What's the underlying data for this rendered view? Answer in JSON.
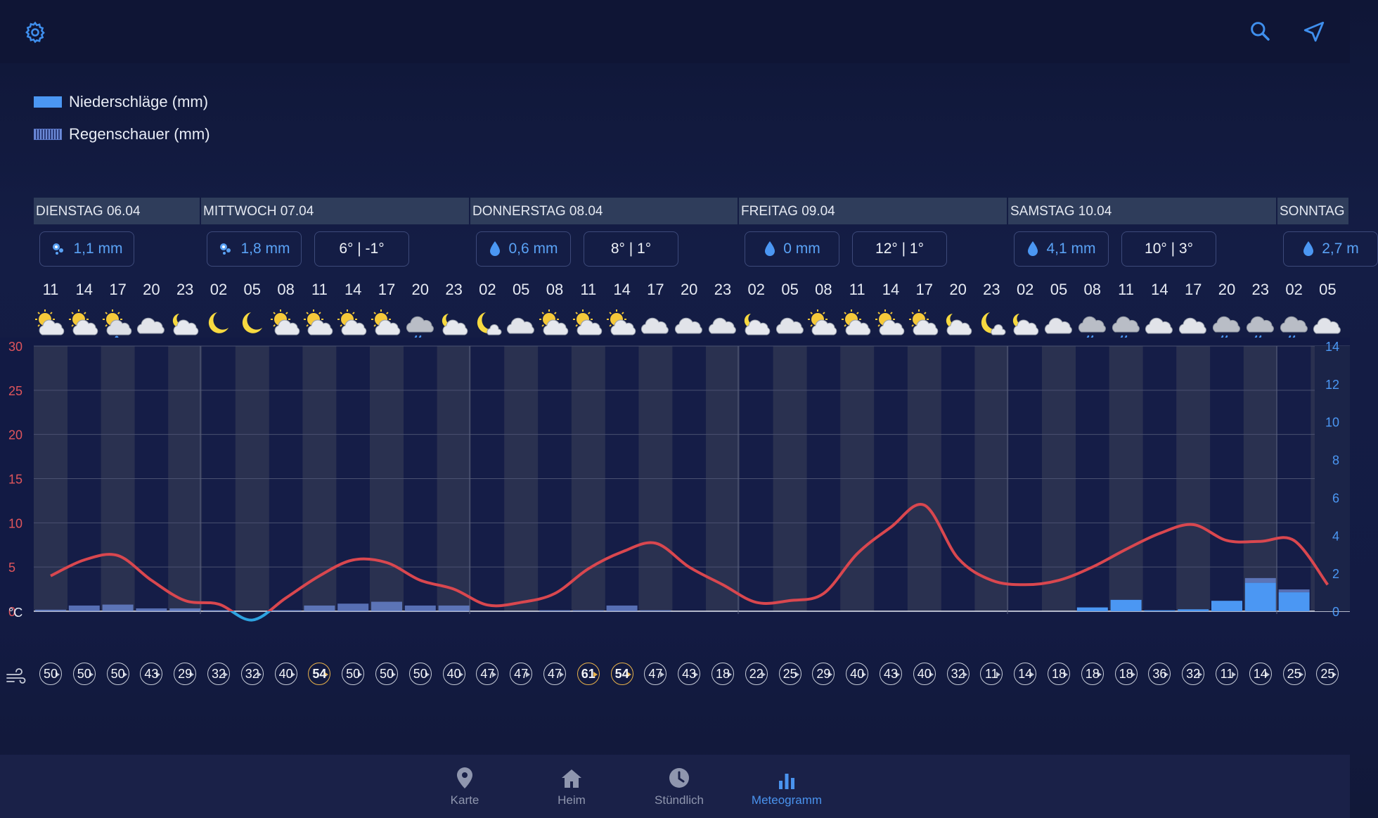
{
  "header": {
    "settings_icon": "gear-icon",
    "search_icon": "search-icon",
    "location_icon": "navigation-arrow-icon",
    "accent": "#4a93ee"
  },
  "legend": {
    "precipitation": "Niederschläge (mm)",
    "showers": "Regenschauer (mm)"
  },
  "days": [
    {
      "label": "DIENSTAG 06.04",
      "precip": "1,1 mm",
      "precip_icon": "snow-icon",
      "temps": null
    },
    {
      "label": "MITTWOCH 07.04",
      "precip": "1,8 mm",
      "precip_icon": "snow-icon",
      "temps": "6° | -1°"
    },
    {
      "label": "DONNERSTAG 08.04",
      "precip": "0,6 mm",
      "precip_icon": "drop-icon",
      "temps": "8° | 1°"
    },
    {
      "label": "FREITAG 09.04",
      "precip": "0 mm",
      "precip_icon": "drop-icon",
      "temps": "12° | 1°"
    },
    {
      "label": "SAMSTAG 10.04",
      "precip": "4,1 mm",
      "precip_icon": "drop-icon",
      "temps": "10° | 3°"
    },
    {
      "label": "SONNTAG",
      "precip": "2,7 m",
      "precip_icon": "drop-icon",
      "temps": null
    }
  ],
  "hours": [
    "11",
    "14",
    "17",
    "20",
    "23",
    "02",
    "05",
    "08",
    "11",
    "14",
    "17",
    "20",
    "23",
    "02",
    "05",
    "08",
    "11",
    "14",
    "17",
    "20",
    "23",
    "02",
    "05",
    "08",
    "11",
    "14",
    "17",
    "20",
    "23",
    "02",
    "05",
    "08",
    "11",
    "14",
    "17",
    "20",
    "23",
    "02",
    "05"
  ],
  "weather_icons": [
    "partly-cloudy-sun",
    "partly-cloudy-sun",
    "cloud-sleet",
    "cloudy",
    "partly-cloudy-moon",
    "moon",
    "moon",
    "partly-cloudy-sun",
    "partly-cloudy-sun",
    "partly-cloudy-sun",
    "partly-cloudy-sun",
    "cloud-rain",
    "partly-cloudy-moon",
    "moon-cloud",
    "cloudy",
    "partly-cloudy-sun",
    "partly-cloudy-sun",
    "partly-cloudy-sun",
    "cloudy",
    "cloudy",
    "cloudy",
    "partly-cloudy-moon",
    "cloudy",
    "partly-cloudy-sun",
    "partly-cloudy-sun",
    "partly-cloudy-sun",
    "partly-cloudy-sun",
    "partly-cloudy-moon",
    "moon-cloud",
    "partly-cloudy-moon",
    "cloudy",
    "cloud-rain",
    "cloud-rain",
    "cloudy",
    "cloudy",
    "cloud-rain",
    "cloud-rain",
    "cloud-rain",
    "cloudy"
  ],
  "wind": [
    "50",
    "50",
    "50",
    "43",
    "29",
    "32",
    "32",
    "40",
    "54",
    "50",
    "50",
    "50",
    "40",
    "47",
    "47",
    "47",
    "61",
    "54",
    "47",
    "43",
    "18",
    "22",
    "25",
    "29",
    "40",
    "43",
    "40",
    "32",
    "11",
    "14",
    "18",
    "18",
    "18",
    "36",
    "32",
    "11",
    "14",
    "25",
    "25"
  ],
  "wind_gusty": [
    false,
    false,
    false,
    false,
    false,
    false,
    false,
    false,
    true,
    false,
    false,
    false,
    false,
    false,
    false,
    false,
    true,
    true,
    false,
    false,
    false,
    false,
    false,
    false,
    false,
    false,
    false,
    false,
    false,
    false,
    false,
    false,
    false,
    false,
    false,
    false,
    false,
    false,
    false
  ],
  "chart_data": {
    "type": "line",
    "title": "",
    "xlabel": "",
    "ylabel": "°C",
    "x": [
      "11",
      "14",
      "17",
      "20",
      "23",
      "02",
      "05",
      "08",
      "11",
      "14",
      "17",
      "20",
      "23",
      "02",
      "05",
      "08",
      "11",
      "14",
      "17",
      "20",
      "23",
      "02",
      "05",
      "08",
      "11",
      "14",
      "17",
      "20",
      "23",
      "02",
      "05",
      "08",
      "11",
      "14",
      "17",
      "20",
      "23",
      "02",
      "05"
    ],
    "ylim": [
      0,
      30
    ],
    "y2lim": [
      0,
      14
    ],
    "yticks": [
      0,
      5,
      10,
      15,
      20,
      25,
      30
    ],
    "y2ticks": [
      0,
      2,
      4,
      6,
      8,
      10,
      12,
      14
    ],
    "grid": true,
    "series": [
      {
        "name": "",
        "axis": "left",
        "type": "line",
        "color": "#d9474f",
        "values": [
          4,
          5.8,
          6.3,
          3.5,
          1.2,
          0.8,
          -1,
          1.5,
          4,
          5.8,
          5.5,
          3.5,
          2.5,
          0.7,
          1,
          2,
          4.8,
          6.7,
          7.7,
          5,
          3,
          1,
          1.2,
          2,
          6.5,
          9.5,
          12,
          6,
          3.5,
          3,
          3.5,
          5,
          7,
          8.8,
          9.8,
          8,
          7.9,
          8,
          3
        ]
      },
      {
        "name": "Niederschläge (mm)",
        "axis": "right",
        "type": "bar",
        "color": "#4b97f3",
        "values": [
          0,
          0,
          0,
          0,
          0,
          0,
          0,
          0,
          0,
          0,
          0,
          0,
          0,
          0,
          0,
          0,
          0,
          0,
          0,
          0,
          0,
          0,
          0,
          0,
          0,
          0,
          0,
          0,
          0,
          0,
          0,
          0.2,
          0.6,
          0.05,
          0.1,
          0.55,
          1.5,
          1,
          0
        ]
      },
      {
        "name": "Regenschauer (mm)",
        "axis": "right",
        "type": "bar",
        "color": "#6d8bd8",
        "values": [
          0.08,
          0.3,
          0.35,
          0.15,
          0.15,
          0.05,
          0,
          0.05,
          0.3,
          0.4,
          0.5,
          0.3,
          0.3,
          0,
          0,
          0.05,
          0.05,
          0.3,
          0.05,
          0,
          0,
          0,
          0,
          0,
          0,
          0,
          0,
          0,
          0,
          0,
          0,
          0,
          0,
          0,
          0,
          0,
          0.25,
          0.15,
          0
        ]
      }
    ]
  },
  "nav": [
    {
      "label": "Karte",
      "icon": "map-pin-icon",
      "active": false
    },
    {
      "label": "Heim",
      "icon": "home-icon",
      "active": false
    },
    {
      "label": "Stündlich",
      "icon": "clock-icon",
      "active": false
    },
    {
      "label": "Meteogramm",
      "icon": "bar-chart-icon",
      "active": true
    }
  ]
}
